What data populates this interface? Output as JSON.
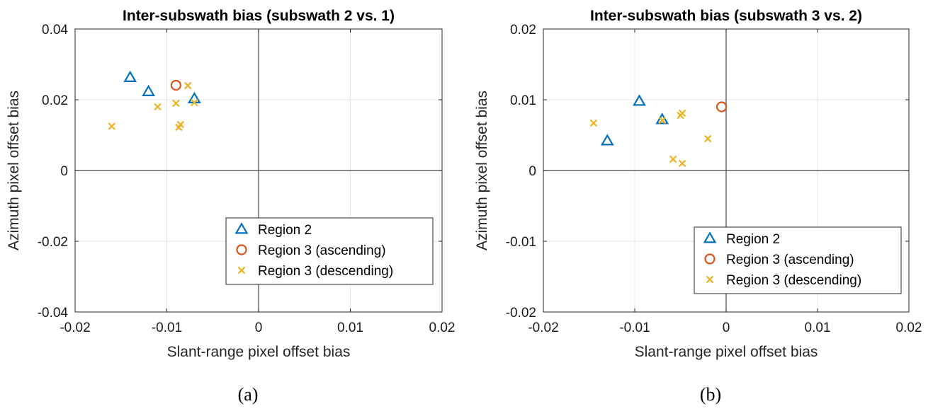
{
  "chart_data": [
    {
      "type": "scatter",
      "title": "Inter-subswath bias (subswath 2 vs. 1)",
      "xlabel": "Slant-range pixel offset bias",
      "ylabel": "Azimuth pixel offset bias",
      "xlim": [
        -0.02,
        0.02
      ],
      "ylim": [
        -0.04,
        0.04
      ],
      "xticks": [
        -0.02,
        -0.01,
        0,
        0.01,
        0.02
      ],
      "xtick_labels": [
        "-0.02",
        "-0.01",
        "0",
        "0.01",
        "0.02"
      ],
      "yticks": [
        -0.04,
        -0.02,
        0,
        0.02,
        0.04
      ],
      "ytick_labels": [
        "-0.04",
        "-0.02",
        "0",
        "0.02",
        "0.04"
      ],
      "grid": true,
      "legend_position": "bottom-right",
      "caption": "(a)",
      "series": [
        {
          "name": "Region 2",
          "marker": "triangle",
          "color": "#0072bd",
          "points": [
            [
              -0.014,
              0.0263
            ],
            [
              -0.012,
              0.0223
            ],
            [
              -0.007,
              0.0203
            ]
          ]
        },
        {
          "name": "Region 3 (ascending)",
          "marker": "circle",
          "color": "#d95319",
          "points": [
            [
              -0.009,
              0.0241
            ]
          ]
        },
        {
          "name": "Region 3 (descending)",
          "marker": "x",
          "color": "#edb120",
          "points": [
            [
              -0.016,
              0.0125
            ],
            [
              -0.011,
              0.018
            ],
            [
              -0.009,
              0.019
            ],
            [
              -0.0087,
              0.0122
            ],
            [
              -0.0085,
              0.013
            ],
            [
              -0.0077,
              0.024
            ],
            [
              -0.007,
              0.0192
            ]
          ]
        }
      ]
    },
    {
      "type": "scatter",
      "title": "Inter-subswath bias (subswath 3 vs. 2)",
      "xlabel": "Slant-range pixel offset bias",
      "ylabel": "Azimuth pixel offset bias",
      "xlim": [
        -0.02,
        0.02
      ],
      "ylim": [
        -0.02,
        0.02
      ],
      "xticks": [
        -0.02,
        -0.01,
        0,
        0.01,
        0.02
      ],
      "xtick_labels": [
        "-0.02",
        "-0.01",
        "0",
        "0.01",
        "0.02"
      ],
      "yticks": [
        -0.02,
        -0.01,
        0,
        0.01,
        0.02
      ],
      "ytick_labels": [
        "-0.02",
        "-0.01",
        "0",
        "0.01",
        "0.02"
      ],
      "grid": true,
      "legend_position": "bottom-right",
      "caption": "(b)",
      "series": [
        {
          "name": "Region 2",
          "marker": "triangle",
          "color": "#0072bd",
          "points": [
            [
              -0.013,
              0.0042
            ],
            [
              -0.0095,
              0.0098
            ],
            [
              -0.007,
              0.0072
            ]
          ]
        },
        {
          "name": "Region 3 (ascending)",
          "marker": "circle",
          "color": "#d95319",
          "points": [
            [
              -0.0005,
              0.009
            ]
          ]
        },
        {
          "name": "Region 3 (descending)",
          "marker": "x",
          "color": "#edb120",
          "points": [
            [
              -0.0145,
              0.0067
            ],
            [
              -0.007,
              0.0071
            ],
            [
              -0.0058,
              0.0016
            ],
            [
              -0.005,
              0.0078
            ],
            [
              -0.0048,
              0.0081
            ],
            [
              -0.0048,
              0.001
            ],
            [
              -0.002,
              0.0045
            ]
          ]
        }
      ]
    }
  ]
}
